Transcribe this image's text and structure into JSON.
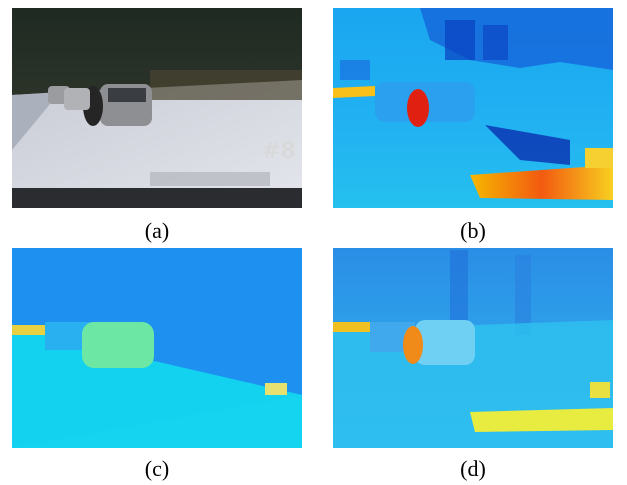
{
  "panels": [
    {
      "caption": "(a)",
      "overlay": "#8"
    },
    {
      "caption": "(b)"
    },
    {
      "caption": "(c)"
    },
    {
      "caption": "(d)"
    }
  ]
}
